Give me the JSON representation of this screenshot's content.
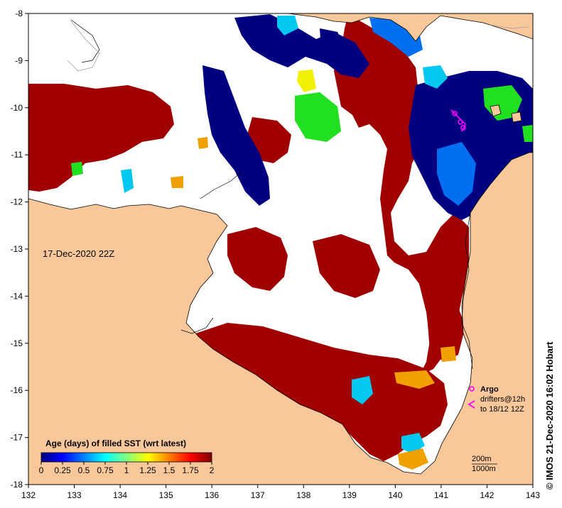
{
  "map": {
    "date_label": "17-Dec-2020 22Z",
    "credit": "© IMOS 21-Dec-2020 16:02 Hobart",
    "x_ticks": [
      "132",
      "133",
      "134",
      "135",
      "136",
      "137",
      "138",
      "139",
      "140",
      "141",
      "142",
      "143"
    ],
    "y_ticks": [
      "-8",
      "-9",
      "-10",
      "-11",
      "-12",
      "-13",
      "-14",
      "-15",
      "-16",
      "-17",
      "-18"
    ],
    "colors": {
      "land": "#f9c89a",
      "nodata": "#ffffff",
      "old": "#a00000",
      "recent": "#000080",
      "blue": "#0070f0",
      "cyan": "#00c8f0",
      "green": "#20e020",
      "yellow": "#f0f000",
      "orange": "#f0a000",
      "argo": "#ff00ff"
    }
  },
  "colorbar": {
    "title": "Age (days) of filled SST (wrt latest)",
    "tick_labels": [
      "0",
      "0.25",
      "0.5",
      "0.75",
      "1",
      "1.25",
      "1.5",
      "1.75",
      "2"
    ]
  },
  "legend": {
    "argo": "Argo",
    "drifters_line1": "drifters@12h",
    "drifters_line2": "to 18/12 12Z",
    "isobath_200": "200m",
    "isobath_1000": "1000m"
  }
}
